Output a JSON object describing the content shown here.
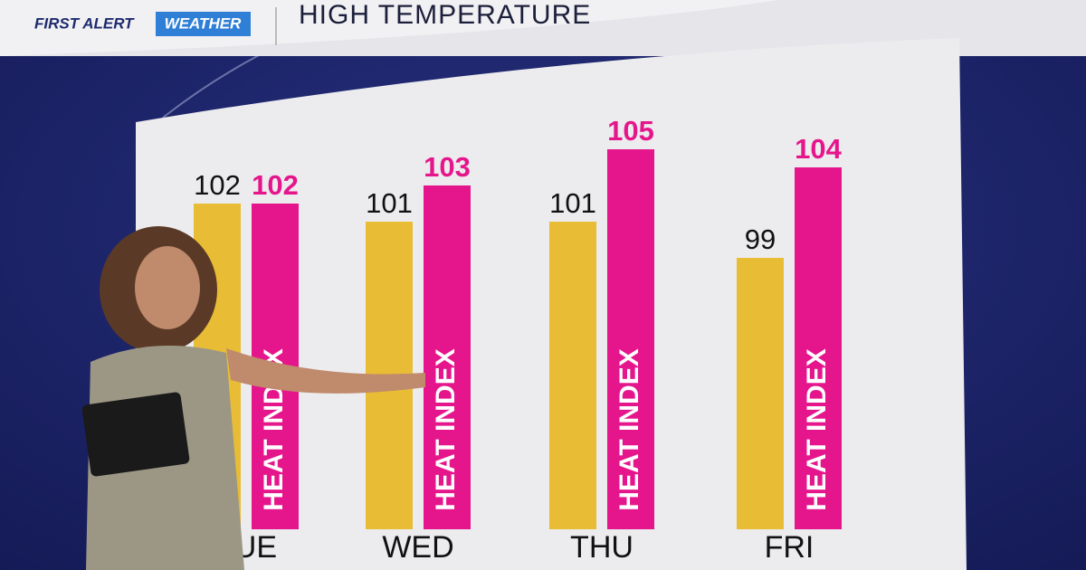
{
  "header": {
    "brand_first": "FIRST ALERT",
    "brand_weather": "WEATHER"
  },
  "chart_data": {
    "type": "bar",
    "title": "HIGH TEMPERATURE",
    "categories": [
      "TUE",
      "WED",
      "THU",
      "FRI"
    ],
    "series": [
      {
        "color": "#e8bd35",
        "values": [
          102,
          101,
          101,
          99
        ]
      },
      {
        "name": "HEAT INDEX",
        "color": "#e5168c",
        "values": [
          102,
          103,
          105,
          104
        ]
      }
    ]
  }
}
